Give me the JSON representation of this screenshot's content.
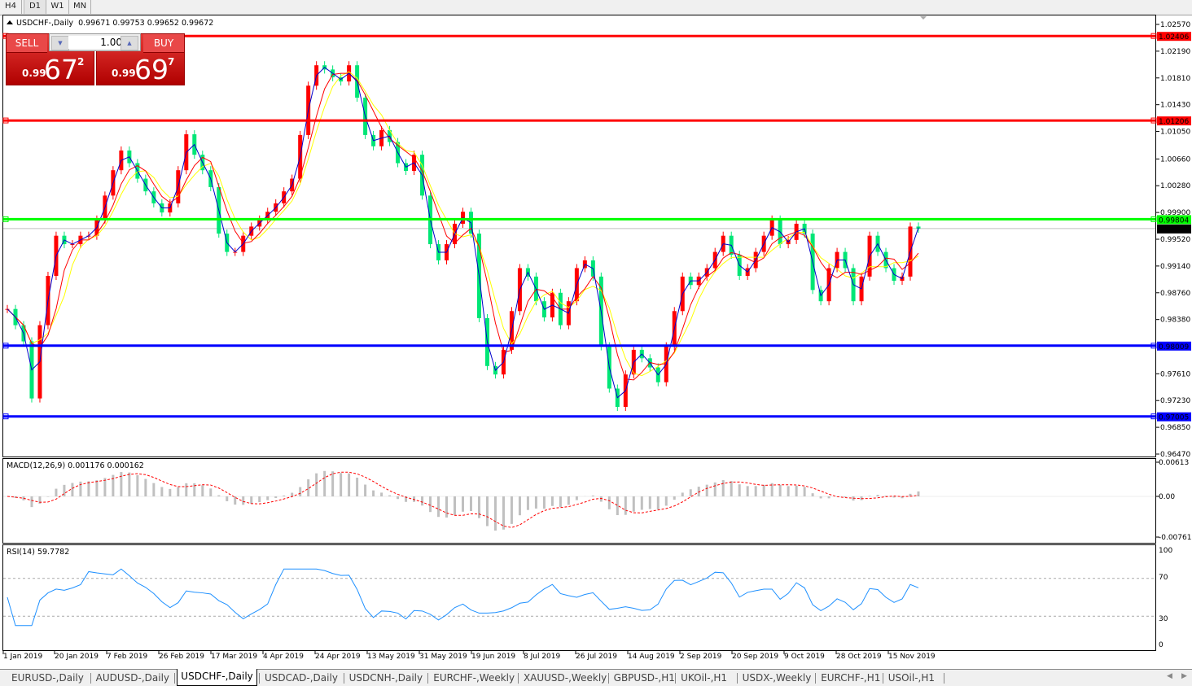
{
  "timeframes": [
    "H4",
    "D1",
    "W1",
    "MN"
  ],
  "active_timeframe": "D1",
  "chart_header": {
    "symbol": "USDCHF-,Daily",
    "ohlc": "0.99671 0.99753 0.99652 0.99672"
  },
  "trade_panel": {
    "sell_label": "SELL",
    "buy_label": "BUY",
    "lot": "1.00",
    "sell_price": {
      "prefix": "0.99",
      "big": "67",
      "sup": "2"
    },
    "buy_price": {
      "prefix": "0.99",
      "big": "69",
      "sup": "7"
    }
  },
  "price_axis": [
    "1.02570",
    "1.02190",
    "1.01810",
    "1.01430",
    "1.01050",
    "1.00660",
    "1.00280",
    "0.99900",
    "0.99520",
    "0.99140",
    "0.98760",
    "0.98380",
    "0.97610",
    "0.97230",
    "0.96850",
    "0.96470"
  ],
  "horizontal_lines": [
    {
      "price": "1.02406",
      "color": "#ff0000"
    },
    {
      "price": "1.01206",
      "color": "#ff0000"
    },
    {
      "price": "0.99804",
      "color": "#00ff00"
    },
    {
      "price": "0.98009",
      "color": "#0000ff"
    },
    {
      "price": "0.97005",
      "color": "#0000ff"
    }
  ],
  "bid_label": {
    "price": "0.99672",
    "color": "#000000"
  },
  "macd": {
    "label": "MACD(12,26,9) 0.001176 0.000162",
    "axis": [
      "0.00613",
      "0.00",
      "-0.007612"
    ]
  },
  "rsi": {
    "label": "RSI(14) 59.7782",
    "axis": [
      "100",
      "70",
      "30",
      "0"
    ],
    "levels": [
      70,
      30
    ]
  },
  "date_axis": [
    "1 Jan 2019",
    "20 Jan 2019",
    "7 Feb 2019",
    "26 Feb 2019",
    "17 Mar 2019",
    "4 Apr 2019",
    "24 Apr 2019",
    "13 May 2019",
    "31 May 2019",
    "19 Jun 2019",
    "8 Jul 2019",
    "26 Jul 2019",
    "14 Aug 2019",
    "2 Sep 2019",
    "20 Sep 2019",
    "9 Oct 2019",
    "28 Oct 2019",
    "15 Nov 2019"
  ],
  "bottom_tabs": [
    "EURUSD-,Daily",
    "AUDUSD-,Daily",
    "USDCHF-,Daily",
    "USDCAD-,Daily",
    "USDCNH-,Daily",
    "EURCHF-,Weekly",
    "XAUUSD-,Weekly",
    "GBPUSD-,H1",
    "UKOil-,H1",
    "USDX-,Weekly",
    "EURCHF-,H1",
    "USOil-,H1"
  ],
  "active_tab": "USDCHF-,Daily",
  "colors": {
    "bull": "#ff0000",
    "bear": "#00e676",
    "ma_fast": "#0000cc",
    "ma_mid": "#ff0000",
    "ma_slow": "#ffff00",
    "macd_hist": "#c0c0c0",
    "macd_signal": "#ff0000",
    "rsi": "#1e90ff"
  },
  "chart_data": {
    "type": "candlestick",
    "symbol": "USDCHF",
    "x_range": [
      "1 Jan 2019",
      "22 Nov 2019"
    ],
    "ylim": [
      0.9647,
      1.0257
    ],
    "closes": [
      0.9853,
      0.983,
      0.9807,
      0.9726,
      0.983,
      0.99,
      0.9957,
      0.9945,
      0.9945,
      0.9957,
      0.9957,
      0.998,
      1.0014,
      1.005,
      1.0078,
      1.006,
      1.0038,
      1.002,
      1.0003,
      0.999,
      1.0003,
      1.005,
      1.0101,
      1.0072,
      1.005,
      1.0026,
      0.996,
      0.9934,
      0.9934,
      0.9957,
      0.997,
      0.998,
      0.9991,
      1.0003,
      1.002,
      1.0038,
      1.01,
      1.017,
      1.0199,
      1.0193,
      1.0182,
      1.0176,
      1.0199,
      1.0153,
      1.01,
      1.0084,
      1.0107,
      1.009,
      1.006,
      1.0049,
      1.0072,
      1.0014,
      0.9945,
      0.9922,
      0.9945,
      0.9974,
      0.9991,
      0.996,
      0.984,
      0.9772,
      0.976,
      0.9795,
      0.985,
      0.9911,
      0.9899,
      0.9864,
      0.9841,
      0.9876,
      0.983,
      0.9864,
      0.9911,
      0.9922,
      0.9899,
      0.98,
      0.974,
      0.9714,
      0.976,
      0.9795,
      0.9783,
      0.977,
      0.9749,
      0.98,
      0.985,
      0.9899,
      0.9887,
      0.9899,
      0.9911,
      0.9934,
      0.9957,
      0.993,
      0.99,
      0.9911,
      0.9934,
      0.9957,
      0.998,
      0.9945,
      0.9951,
      0.9974,
      0.996,
      0.988,
      0.9864,
      0.9911,
      0.9934,
      0.9911,
      0.9864,
      0.9899,
      0.9957,
      0.9934,
      0.9911,
      0.9893,
      0.9899,
      0.997,
      0.9967
    ]
  }
}
